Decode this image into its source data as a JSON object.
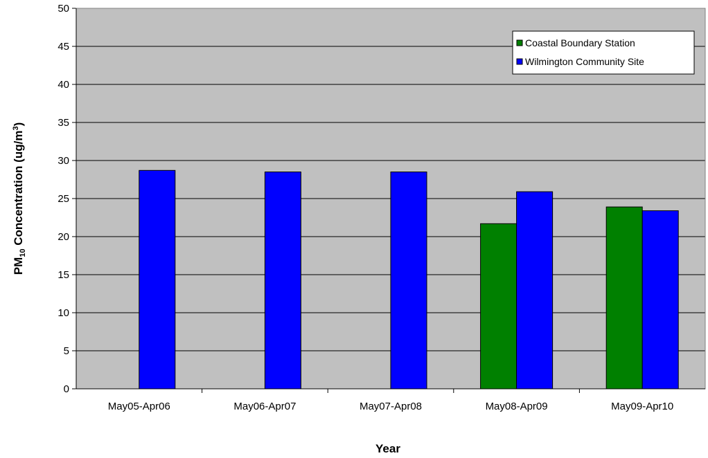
{
  "chart_data": {
    "type": "bar",
    "title": "",
    "xlabel": "Year",
    "ylabel": {
      "prefix": "PM",
      "subscript": "10",
      "middle": " Concentration (ug/m",
      "superscript": "3",
      "suffix": ")"
    },
    "ylim": [
      0,
      50
    ],
    "yticks": [
      0,
      5,
      10,
      15,
      20,
      25,
      30,
      35,
      40,
      45,
      50
    ],
    "grid": true,
    "legend_position": "top-right",
    "categories": [
      "May05-Apr06",
      "May06-Apr07",
      "May07-Apr08",
      "May08-Apr09",
      "May09-Apr10"
    ],
    "series": [
      {
        "name": "Coastal Boundary Station",
        "color": "#008000",
        "values": [
          null,
          null,
          null,
          21.7,
          23.9
        ]
      },
      {
        "name": "Wilmington Community Site",
        "color": "#0000FF",
        "values": [
          28.7,
          28.5,
          28.5,
          25.9,
          23.4
        ]
      }
    ],
    "colors": {
      "plot_background": "#C0C0C0",
      "gridline": "#000000"
    }
  }
}
